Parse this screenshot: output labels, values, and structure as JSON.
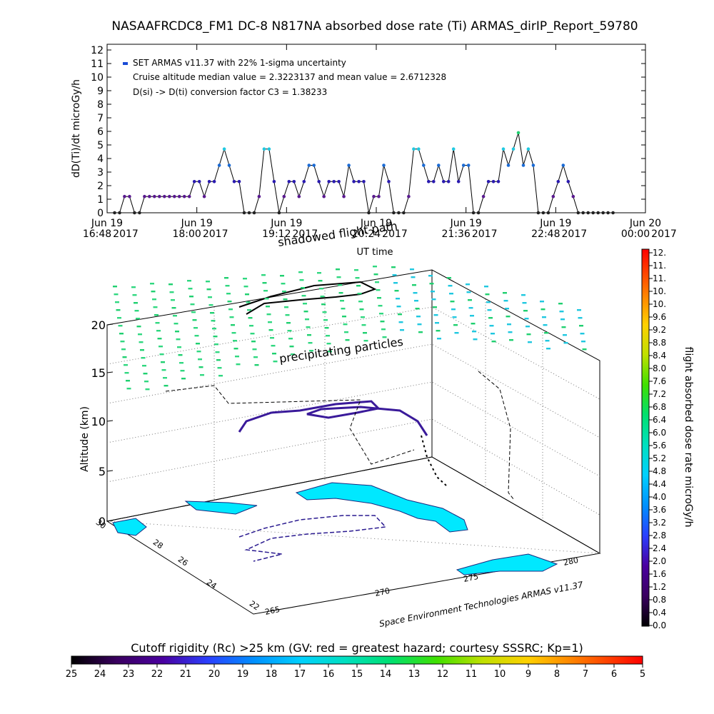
{
  "chart_data": [
    {
      "type": "line",
      "title": "NASAAFRCDC8_FM1 DC-8   N817NA absorbed dose rate (Ti) ARMAS_dirIP_Report_59780",
      "ylabel": "dD(Ti)/dt microGy/h",
      "xlabel": "UT time",
      "ylim": [
        0,
        12
      ],
      "yticks": [
        "0",
        "1",
        "2",
        "3",
        "4",
        "5",
        "6",
        "7",
        "8",
        "9",
        "10",
        "11",
        "12"
      ],
      "xticks": [
        {
          "date": "Jun 19",
          "time": "16:48",
          "year": "2017"
        },
        {
          "date": "Jun 19",
          "time": "18:00",
          "year": "2017"
        },
        {
          "date": "Jun 19",
          "time": "19:12",
          "year": "2017"
        },
        {
          "date": "Jun 19",
          "time": "20:24",
          "year": "2017"
        },
        {
          "date": "Jun 19",
          "time": "21:36",
          "year": "2017"
        },
        {
          "date": "Jun 19",
          "time": "22:48",
          "year": "2017"
        },
        {
          "date": "Jun 20",
          "time": "00:00",
          "year": "2017"
        }
      ],
      "legend": "SET ARMAS v11.37 with 22% 1-sigma uncertainty",
      "annotations": [
        "Cruise altitude median value = 2.3223137 and mean value = 2.6712328",
        "D(si) -> D(ti) conversion factor C3 = 1.38233"
      ],
      "series": [
        {
          "minutes_after_1648": [
            0,
            4,
            8,
            12,
            16,
            20,
            24,
            28,
            32,
            36,
            40,
            44,
            48,
            52,
            56,
            60,
            64,
            68,
            72,
            76,
            80,
            84,
            88,
            92,
            96,
            100,
            104,
            108,
            112,
            116,
            120,
            124,
            128,
            132,
            136,
            140,
            144,
            148,
            152,
            156,
            160,
            164,
            168,
            172,
            176,
            180,
            184,
            188,
            192,
            196,
            200,
            204,
            208,
            212,
            216,
            220,
            224,
            228,
            232,
            236,
            240,
            244,
            248,
            252,
            256,
            260,
            264,
            268,
            272,
            276,
            280,
            284,
            288,
            292,
            296,
            300,
            304,
            308,
            312,
            316,
            320,
            324,
            328,
            332,
            336,
            340,
            344,
            348,
            352,
            356,
            360,
            364,
            368,
            372,
            376,
            380,
            384,
            388,
            392,
            396,
            400
          ],
          "dose_rate_microGy_h": [
            0,
            0,
            1.2,
            1.2,
            0,
            0,
            1.2,
            1.2,
            1.2,
            1.2,
            1.2,
            1.2,
            1.2,
            1.2,
            1.2,
            1.2,
            2.3,
            2.3,
            1.2,
            2.3,
            2.3,
            3.5,
            4.7,
            3.5,
            2.3,
            2.3,
            0,
            0,
            0,
            1.2,
            4.7,
            4.7,
            2.3,
            0,
            1.2,
            2.3,
            2.3,
            1.2,
            2.3,
            3.5,
            3.5,
            2.3,
            1.2,
            2.3,
            2.3,
            2.3,
            1.2,
            3.5,
            2.3,
            2.3,
            2.3,
            0,
            1.2,
            1.2,
            3.5,
            2.3,
            0,
            0,
            0,
            1.2,
            4.7,
            4.7,
            3.5,
            2.3,
            2.3,
            3.5,
            2.3,
            2.3,
            4.7,
            2.3,
            3.5,
            3.5,
            0,
            0,
            1.2,
            2.3,
            2.3,
            2.3,
            4.7,
            3.5,
            4.7,
            5.9,
            3.5,
            4.7,
            3.5,
            0,
            0,
            0,
            1.2,
            2.3,
            3.5,
            2.3,
            1.2,
            0,
            0,
            0,
            0,
            0,
            0,
            0,
            0
          ]
        }
      ]
    },
    {
      "type": "scatter",
      "title": "",
      "zlabel": "Altitude (km)",
      "zticks": [
        "0",
        "5",
        "10",
        "15",
        "20"
      ],
      "xticks": [
        "265",
        "270",
        "275",
        "280"
      ],
      "yticks": [
        "22",
        "24",
        "26",
        "28",
        "30"
      ],
      "annotations": [
        "shadowed flight path",
        "precipitating particles"
      ],
      "credit": "Space Environment Technologies ARMAS v11.37",
      "colorbar": {
        "label": "flight absorbed dose rate microGy/h",
        "ticks": [
          "0.0",
          "0.4",
          "0.8",
          "1.2",
          "1.6",
          "2.0",
          "2.4",
          "2.8",
          "3.2",
          "3.6",
          "4.0",
          "4.4",
          "4.8",
          "5.2",
          "5.6",
          "6.0",
          "6.4",
          "6.8",
          "7.2",
          "7.6",
          "8.0",
          "8.4",
          "8.8",
          "9.2",
          "9.6",
          "10.",
          "10.",
          "11.",
          "11.",
          "12."
        ]
      },
      "rigidity_bar": {
        "label": "Cutoff rigidity (Rc) >25 km (GV: red = greatest hazard; courtesy SSSRC; Kp=1)",
        "ticks": [
          "25",
          "24",
          "23",
          "22",
          "21",
          "20",
          "19",
          "18",
          "17",
          "16",
          "15",
          "14",
          "13",
          "12",
          "11",
          "10",
          "9",
          "8",
          "7",
          "6",
          "5"
        ]
      }
    }
  ]
}
